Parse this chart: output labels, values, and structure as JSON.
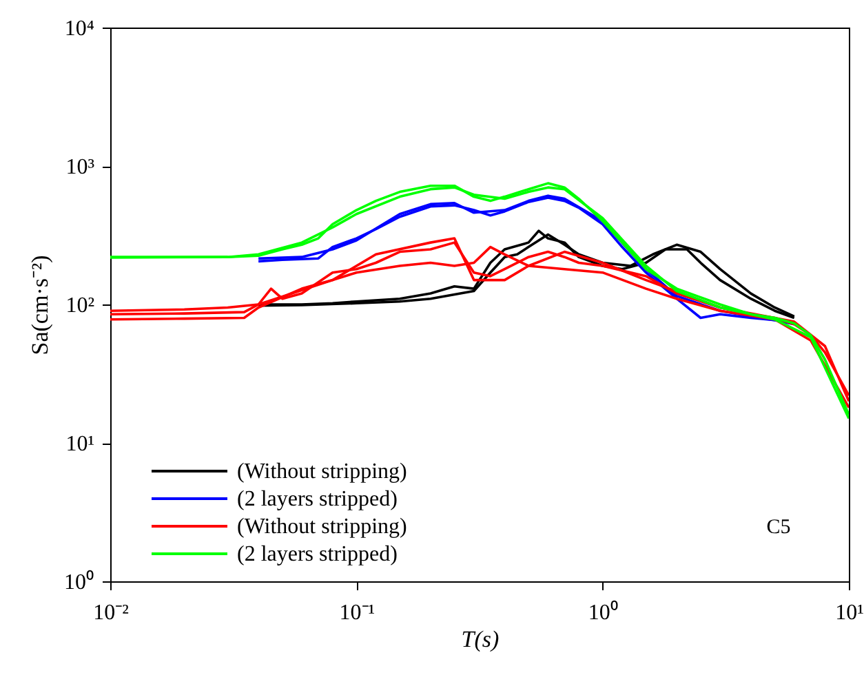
{
  "chart_data": {
    "type": "line",
    "xlabel": "T(s)",
    "ylabel": "Sa(cm·s⁻²)",
    "log": "xy",
    "legend": "bottom left",
    "grid": false,
    "marker": "none",
    "line_style": "solid",
    "xlim": [
      0.01,
      10
    ],
    "ylim": [
      1,
      10000
    ],
    "xticks": [
      {
        "value": 0.01,
        "label": "10⁻²"
      },
      {
        "value": 0.1,
        "label": "10⁻¹"
      },
      {
        "value": 1,
        "label": "10⁰"
      },
      {
        "value": 10,
        "label": "10¹"
      }
    ],
    "yticks": [
      {
        "value": 1,
        "label": "10⁰"
      },
      {
        "value": 10,
        "label": "10¹"
      },
      {
        "value": 100,
        "label": "10²"
      },
      {
        "value": 1000,
        "label": "10³"
      },
      {
        "value": 10000,
        "label": "10⁴"
      }
    ],
    "annotations": [
      "C5"
    ],
    "series": [
      {
        "name": "(Without stripping)",
        "color": "#000000",
        "x": [
          0.04,
          0.06,
          0.08,
          0.1,
          0.15,
          0.2,
          0.25,
          0.3,
          0.35,
          0.4,
          0.5,
          0.55,
          0.6,
          0.7,
          0.8,
          1.0,
          1.2,
          1.5,
          1.8,
          2.2,
          2.5,
          3,
          4,
          5,
          6
        ],
        "values": [
          100,
          100,
          102,
          105,
          110,
          120,
          135,
          130,
          200,
          250,
          280,
          340,
          300,
          280,
          220,
          190,
          180,
          200,
          250,
          250,
          200,
          150,
          110,
          90,
          80
        ]
      },
      {
        "color": "#000000",
        "x": [
          0.04,
          0.06,
          0.1,
          0.15,
          0.2,
          0.3,
          0.35,
          0.4,
          0.45,
          0.5,
          0.6,
          0.7,
          0.8,
          1.0,
          1.3,
          1.6,
          2,
          2.5,
          3,
          4,
          5,
          6
        ],
        "values": [
          98,
          99,
          102,
          105,
          110,
          125,
          170,
          220,
          230,
          260,
          320,
          270,
          230,
          200,
          190,
          230,
          270,
          240,
          180,
          120,
          95,
          82
        ]
      },
      {
        "name": "(2 layers stripped)",
        "color": "#0000ff",
        "x": [
          0.04,
          0.05,
          0.07,
          0.08,
          0.1,
          0.12,
          0.15,
          0.2,
          0.25,
          0.3,
          0.35,
          0.4,
          0.5,
          0.6,
          0.7,
          0.8,
          1.0,
          1.2,
          1.5,
          2,
          2.5,
          3,
          4,
          5,
          6
        ],
        "values": [
          205,
          210,
          215,
          260,
          300,
          350,
          430,
          510,
          520,
          480,
          440,
          470,
          550,
          590,
          560,
          500,
          380,
          260,
          170,
          110,
          80,
          85,
          80,
          77,
          72
        ]
      },
      {
        "color": "#0000ff",
        "x": [
          0.04,
          0.06,
          0.08,
          0.1,
          0.15,
          0.2,
          0.25,
          0.3,
          0.4,
          0.5,
          0.6,
          0.7,
          1.0,
          1.5,
          2,
          3,
          4,
          6
        ],
        "values": [
          215,
          220,
          250,
          290,
          450,
          530,
          540,
          460,
          480,
          560,
          610,
          580,
          400,
          180,
          115,
          90,
          82,
          73
        ]
      },
      {
        "name": "(Without stripping)",
        "color": "#ff0000",
        "x": [
          0.01,
          0.02,
          0.03,
          0.04,
          0.045,
          0.05,
          0.06,
          0.08,
          0.1,
          0.12,
          0.15,
          0.2,
          0.25,
          0.3,
          0.35,
          0.4,
          0.5,
          0.6,
          0.7,
          0.8,
          1.0,
          1.5,
          2,
          3,
          4,
          5,
          6,
          7,
          8,
          10
        ],
        "values": [
          90,
          92,
          95,
          100,
          130,
          110,
          120,
          170,
          180,
          200,
          240,
          250,
          280,
          170,
          160,
          180,
          220,
          240,
          220,
          200,
          190,
          160,
          120,
          95,
          85,
          80,
          72,
          60,
          45,
          22
        ]
      },
      {
        "color": "#ff0000",
        "x": [
          0.01,
          0.02,
          0.035,
          0.04,
          0.06,
          0.08,
          0.1,
          0.15,
          0.2,
          0.25,
          0.3,
          0.35,
          0.4,
          0.5,
          0.7,
          1.0,
          1.5,
          2,
          3,
          5,
          7,
          10
        ],
        "values": [
          78,
          79,
          80,
          95,
          130,
          150,
          170,
          190,
          200,
          190,
          200,
          260,
          230,
          190,
          180,
          170,
          130,
          110,
          90,
          78,
          55,
          18
        ]
      },
      {
        "color": "#ff0000",
        "x": [
          0.01,
          0.02,
          0.035,
          0.04,
          0.08,
          0.12,
          0.2,
          0.25,
          0.3,
          0.4,
          0.5,
          0.7,
          1.0,
          1.5,
          3,
          6,
          8,
          10
        ],
        "values": [
          85,
          86,
          88,
          100,
          150,
          230,
          280,
          300,
          150,
          150,
          190,
          240,
          200,
          150,
          95,
          75,
          50,
          20
        ]
      },
      {
        "name": "(2 layers stripped)",
        "color": "#00ff00",
        "x": [
          0.01,
          0.03,
          0.04,
          0.05,
          0.06,
          0.07,
          0.08,
          0.1,
          0.12,
          0.15,
          0.2,
          0.25,
          0.3,
          0.35,
          0.4,
          0.5,
          0.6,
          0.7,
          0.8,
          1.0,
          1.2,
          1.5,
          2,
          3,
          4,
          5,
          6,
          7,
          8,
          10
        ],
        "values": [
          220,
          220,
          225,
          250,
          270,
          300,
          380,
          480,
          560,
          650,
          720,
          720,
          600,
          560,
          600,
          680,
          750,
          700,
          580,
          400,
          280,
          180,
          130,
          100,
          85,
          80,
          73,
          60,
          40,
          16
        ]
      },
      {
        "color": "#00ff00",
        "x": [
          0.01,
          0.03,
          0.04,
          0.06,
          0.08,
          0.1,
          0.15,
          0.2,
          0.25,
          0.3,
          0.4,
          0.5,
          0.6,
          0.7,
          1.0,
          1.5,
          2,
          3,
          5,
          7,
          10
        ],
        "values": [
          218,
          220,
          230,
          280,
          360,
          450,
          600,
          680,
          700,
          620,
          580,
          650,
          700,
          680,
          420,
          190,
          125,
          95,
          78,
          58,
          15
        ]
      }
    ]
  }
}
